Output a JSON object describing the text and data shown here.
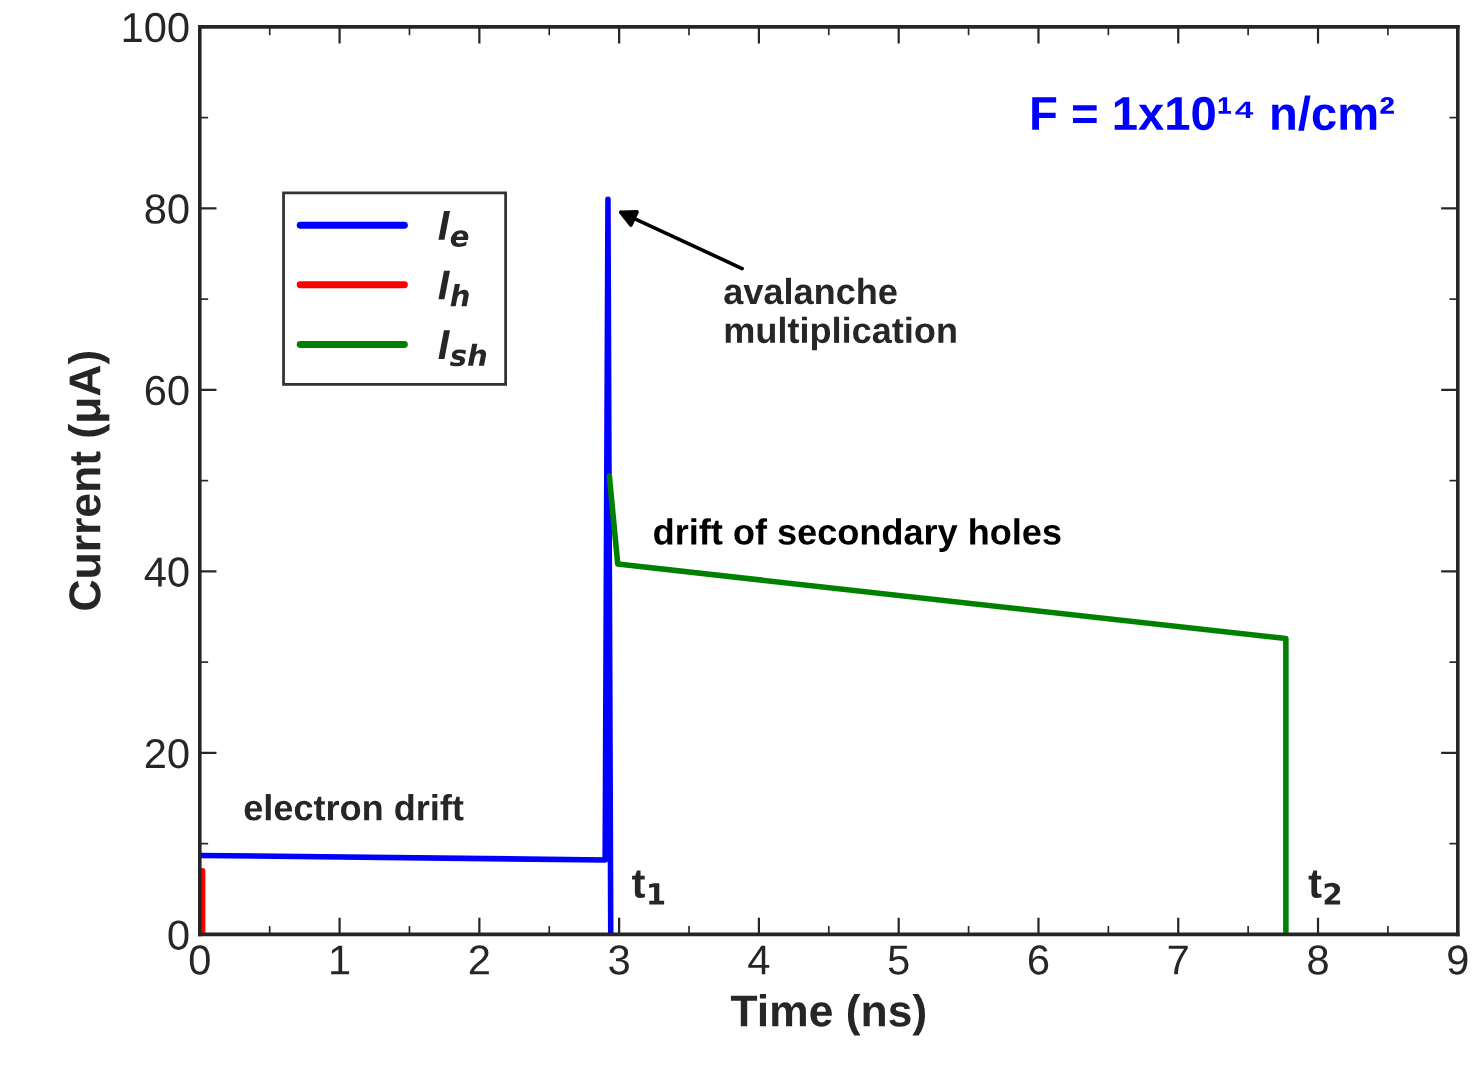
{
  "chart_data": {
    "type": "line",
    "xlabel": "Time (ns)",
    "ylabel": "Current (μA)",
    "xlim": [
      0,
      9
    ],
    "xticks": [
      0,
      1,
      2,
      3,
      4,
      5,
      6,
      7,
      8,
      9
    ],
    "ylim": [
      0,
      100
    ],
    "yticks": [
      0,
      20,
      40,
      60,
      80,
      100
    ],
    "grid": false,
    "legend": "top left",
    "marker": "none",
    "line_style": "solid",
    "series": [
      {
        "name": "I$_{e}$",
        "color": "#0000ff",
        "x": [
          0,
          2.9,
          2.92,
          2.93,
          2.94
        ],
        "values": [
          8.7,
          8.2,
          81,
          40,
          0
        ]
      },
      {
        "name": "I$_{h}$",
        "color": "#ff0000",
        "x": [
          0.02,
          0.02
        ],
        "values": [
          7,
          0
        ]
      },
      {
        "name": "I$_{sh}$",
        "color": "#008000",
        "x": [
          2.93,
          2.99,
          7.77,
          7.77
        ],
        "values": [
          50.5,
          40.8,
          32.6,
          0
        ]
      }
    ],
    "annotations": [
      "F = 1x10¹⁴ n/cm²",
      {
        "text": "avalanche\nmultiplication",
        "x": 2.95,
        "y": 80
      },
      {
        "text": "electron drift",
        "x": 1.1,
        "y": 9
      },
      "drift of secondary holes",
      {
        "text": "t$_{1}$",
        "x": 2.93,
        "y": 0
      },
      {
        "text": "t$_{2}$",
        "x": 7.77,
        "y": 0
      }
    ]
  }
}
